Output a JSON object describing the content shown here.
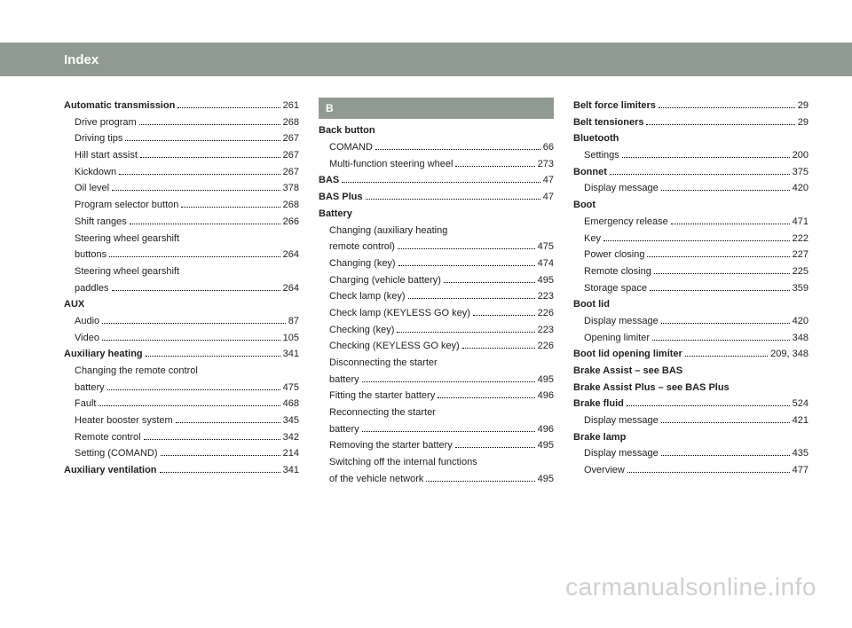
{
  "header": {
    "title": "Index"
  },
  "watermark": "carmanualsonline.info",
  "columns": [
    {
      "items": [
        {
          "type": "entry",
          "label": "Automatic transmission",
          "bold": true,
          "page": "261"
        },
        {
          "type": "sub",
          "label": "Drive program",
          "page": "268"
        },
        {
          "type": "sub",
          "label": "Driving tips",
          "page": "267"
        },
        {
          "type": "sub",
          "label": "Hill start assist",
          "page": "267"
        },
        {
          "type": "sub",
          "label": "Kickdown",
          "page": "267"
        },
        {
          "type": "sub",
          "label": "Oil level",
          "page": "378"
        },
        {
          "type": "sub",
          "label": "Program selector button",
          "page": "268"
        },
        {
          "type": "sub",
          "label": "Shift ranges",
          "page": "266"
        },
        {
          "type": "sub-multi",
          "lines": [
            "Steering wheel gearshift"
          ],
          "last": "buttons",
          "page": "264"
        },
        {
          "type": "sub-multi",
          "lines": [
            "Steering wheel gearshift"
          ],
          "last": "paddles",
          "page": "264"
        },
        {
          "type": "header",
          "label": "AUX"
        },
        {
          "type": "sub",
          "label": "Audio",
          "page": "87"
        },
        {
          "type": "sub",
          "label": "Video",
          "page": "105"
        },
        {
          "type": "entry",
          "label": "Auxiliary heating",
          "bold": true,
          "page": "341"
        },
        {
          "type": "sub-multi",
          "lines": [
            "Changing the remote control"
          ],
          "last": "battery",
          "page": "475"
        },
        {
          "type": "sub",
          "label": "Fault",
          "page": "468"
        },
        {
          "type": "sub",
          "label": "Heater booster system",
          "page": "345"
        },
        {
          "type": "sub",
          "label": "Remote control",
          "page": "342"
        },
        {
          "type": "sub",
          "label": "Setting (COMAND)",
          "page": "214"
        },
        {
          "type": "entry",
          "label": "Auxiliary ventilation",
          "bold": true,
          "page": "341"
        }
      ]
    },
    {
      "items": [
        {
          "type": "letter",
          "label": "B"
        },
        {
          "type": "header",
          "label": "Back button"
        },
        {
          "type": "sub",
          "label": "COMAND",
          "page": "66"
        },
        {
          "type": "sub",
          "label": "Multi-function steering wheel",
          "page": "273"
        },
        {
          "type": "entry",
          "label": "BAS",
          "bold": true,
          "page": "47"
        },
        {
          "type": "entry",
          "label": "BAS Plus",
          "bold": true,
          "page": "47"
        },
        {
          "type": "header",
          "label": "Battery"
        },
        {
          "type": "sub-multi",
          "lines": [
            "Changing (auxiliary heating"
          ],
          "last": "remote control)",
          "page": "475"
        },
        {
          "type": "sub",
          "label": "Changing (key)",
          "page": "474"
        },
        {
          "type": "sub",
          "label": "Charging (vehicle battery)",
          "page": "495"
        },
        {
          "type": "sub",
          "label": "Check lamp (key)",
          "page": "223"
        },
        {
          "type": "sub",
          "label": "Check lamp (KEYLESS GO key)",
          "page": "226"
        },
        {
          "type": "sub",
          "label": "Checking (key)",
          "page": "223"
        },
        {
          "type": "sub",
          "label": "Checking (KEYLESS GO key)",
          "page": "226"
        },
        {
          "type": "sub-multi",
          "lines": [
            "Disconnecting the starter"
          ],
          "last": "battery",
          "page": "495"
        },
        {
          "type": "sub",
          "label": "Fitting the starter battery",
          "page": "496"
        },
        {
          "type": "sub-multi",
          "lines": [
            "Reconnecting the starter"
          ],
          "last": "battery",
          "page": "496"
        },
        {
          "type": "sub",
          "label": "Removing the starter battery",
          "page": "495"
        },
        {
          "type": "sub-multi",
          "lines": [
            "Switching off the internal functions"
          ],
          "last": "of the vehicle network",
          "page": "495"
        }
      ]
    },
    {
      "items": [
        {
          "type": "entry",
          "label": "Belt force limiters",
          "bold": true,
          "page": "29"
        },
        {
          "type": "entry",
          "label": "Belt tensioners",
          "bold": true,
          "page": "29"
        },
        {
          "type": "header",
          "label": "Bluetooth"
        },
        {
          "type": "sub",
          "label": "Settings",
          "page": "200"
        },
        {
          "type": "entry",
          "label": "Bonnet",
          "bold": true,
          "page": "375"
        },
        {
          "type": "sub",
          "label": "Display message",
          "page": "420"
        },
        {
          "type": "header",
          "label": "Boot"
        },
        {
          "type": "sub",
          "label": "Emergency release",
          "page": "471"
        },
        {
          "type": "sub",
          "label": "Key",
          "page": "222"
        },
        {
          "type": "sub",
          "label": "Power closing",
          "page": "227"
        },
        {
          "type": "sub",
          "label": "Remote closing",
          "page": "225"
        },
        {
          "type": "sub",
          "label": "Storage space",
          "page": "359"
        },
        {
          "type": "header",
          "label": "Boot lid"
        },
        {
          "type": "sub",
          "label": "Display message",
          "page": "420"
        },
        {
          "type": "sub",
          "label": "Opening limiter",
          "page": "348"
        },
        {
          "type": "entry",
          "label": "Boot lid opening limiter",
          "bold": true,
          "page": "209, 348"
        },
        {
          "type": "textonly",
          "label": "Brake Assist – see BAS",
          "bold": true
        },
        {
          "type": "textonly",
          "label": "Brake Assist Plus – see BAS Plus",
          "bold": true
        },
        {
          "type": "entry",
          "label": "Brake fluid",
          "bold": true,
          "page": "524"
        },
        {
          "type": "sub",
          "label": "Display message",
          "page": "421"
        },
        {
          "type": "header",
          "label": "Brake lamp"
        },
        {
          "type": "sub",
          "label": "Display message",
          "page": "435"
        },
        {
          "type": "sub",
          "label": "Overview",
          "page": "477"
        }
      ]
    }
  ]
}
